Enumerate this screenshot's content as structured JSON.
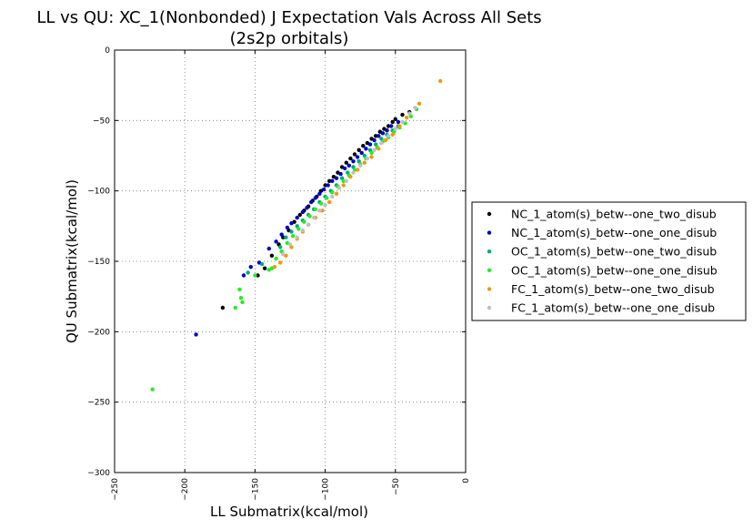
{
  "chart_data": {
    "type": "scatter",
    "title_line1": "LL vs QU: XC_1(Nonbonded) J Expectation Vals Across All Sets",
    "title_line2": "(2s2p orbitals)",
    "xlabel": "LL Submatrix(kcal/mol)",
    "ylabel": "QU Submatrix(kcal/mol)",
    "xlim": [
      -250,
      0
    ],
    "ylim": [
      -300,
      0
    ],
    "xticks": [
      -250,
      -200,
      -150,
      -100,
      -50,
      0
    ],
    "yticks": [
      0,
      -50,
      -100,
      -150,
      -200,
      -250,
      -300
    ],
    "grid": true,
    "legend_position": "right-outside",
    "series": [
      {
        "name": "NC_1_atom(s)_betw--one_two_disub",
        "color": "#000000",
        "points": [
          [
            -173,
            -183
          ],
          [
            -148,
            -160
          ],
          [
            -143,
            -155
          ],
          [
            -138,
            -146
          ],
          [
            -133,
            -138
          ],
          [
            -130,
            -133
          ],
          [
            -126,
            -128
          ],
          [
            -122,
            -122
          ],
          [
            -118,
            -117
          ],
          [
            -115,
            -114
          ],
          [
            -112,
            -111
          ],
          [
            -109,
            -107
          ],
          [
            -106,
            -104
          ],
          [
            -103,
            -100
          ],
          [
            -100,
            -96
          ],
          [
            -97,
            -93
          ],
          [
            -94,
            -90
          ],
          [
            -91,
            -87
          ],
          [
            -88,
            -83
          ],
          [
            -85,
            -80
          ],
          [
            -82,
            -77
          ],
          [
            -79,
            -74
          ],
          [
            -76,
            -71
          ],
          [
            -73,
            -68
          ],
          [
            -70,
            -66
          ],
          [
            -67,
            -63
          ],
          [
            -64,
            -61
          ],
          [
            -61,
            -58
          ],
          [
            -58,
            -56
          ],
          [
            -55,
            -54
          ],
          [
            -52,
            -51
          ],
          [
            -50,
            -49
          ],
          [
            -45,
            -46
          ],
          [
            -40,
            -44
          ]
        ]
      },
      {
        "name": "NC_1_atom(s)_betw--one_one_disub",
        "color": "#0000cc",
        "points": [
          [
            -192,
            -202
          ],
          [
            -158,
            -160
          ],
          [
            -153,
            -154
          ],
          [
            -147,
            -151
          ],
          [
            -140,
            -141
          ],
          [
            -135,
            -136
          ],
          [
            -131,
            -131
          ],
          [
            -127,
            -126
          ],
          [
            -124,
            -123
          ],
          [
            -120,
            -119
          ],
          [
            -116,
            -115
          ],
          [
            -113,
            -112
          ],
          [
            -110,
            -108
          ],
          [
            -107,
            -105
          ],
          [
            -104,
            -102
          ],
          [
            -101,
            -99
          ],
          [
            -98,
            -96
          ],
          [
            -95,
            -93
          ],
          [
            -92,
            -91
          ],
          [
            -89,
            -88
          ],
          [
            -86,
            -84
          ],
          [
            -83,
            -82
          ],
          [
            -80,
            -79
          ],
          [
            -77,
            -76
          ],
          [
            -74,
            -73
          ],
          [
            -71,
            -70
          ],
          [
            -68,
            -67
          ],
          [
            -65,
            -64
          ],
          [
            -62,
            -61
          ],
          [
            -59,
            -59
          ],
          [
            -56,
            -57
          ],
          [
            -53,
            -54
          ],
          [
            -48,
            -51
          ]
        ]
      },
      {
        "name": "OC_1_atom(s)_betw--one_two_disub",
        "color": "#00a880",
        "points": [
          [
            -155,
            -158
          ],
          [
            -145,
            -152
          ],
          [
            -132,
            -140
          ],
          [
            -128,
            -133
          ],
          [
            -124,
            -129
          ],
          [
            -120,
            -125
          ],
          [
            -116,
            -121
          ],
          [
            -112,
            -117
          ],
          [
            -108,
            -113
          ],
          [
            -104,
            -108
          ],
          [
            -100,
            -104
          ],
          [
            -96,
            -100
          ],
          [
            -92,
            -96
          ],
          [
            -88,
            -91
          ],
          [
            -84,
            -87
          ],
          [
            -80,
            -83
          ],
          [
            -76,
            -79
          ],
          [
            -72,
            -75
          ],
          [
            -68,
            -71
          ],
          [
            -64,
            -67
          ],
          [
            -60,
            -63
          ],
          [
            -56,
            -60
          ],
          [
            -52,
            -57
          ],
          [
            -48,
            -54
          ]
        ]
      },
      {
        "name": "OC_1_atom(s)_betw--one_one_disub",
        "color": "#22ee22",
        "points": [
          [
            -223,
            -241
          ],
          [
            -164,
            -183
          ],
          [
            -160,
            -176
          ],
          [
            -159,
            -179
          ],
          [
            -161,
            -170
          ],
          [
            -150,
            -160
          ],
          [
            -140,
            -156
          ],
          [
            -138,
            -155
          ],
          [
            -135,
            -148
          ],
          [
            -131,
            -143
          ],
          [
            -127,
            -137
          ],
          [
            -123,
            -132
          ],
          [
            -119,
            -127
          ],
          [
            -115,
            -122
          ],
          [
            -111,
            -118
          ],
          [
            -107,
            -113
          ],
          [
            -103,
            -109
          ],
          [
            -99,
            -105
          ],
          [
            -95,
            -101
          ],
          [
            -91,
            -97
          ],
          [
            -87,
            -93
          ],
          [
            -83,
            -89
          ],
          [
            -79,
            -85
          ],
          [
            -75,
            -81
          ],
          [
            -71,
            -77
          ],
          [
            -67,
            -73
          ],
          [
            -63,
            -69
          ],
          [
            -59,
            -65
          ],
          [
            -55,
            -62
          ],
          [
            -51,
            -58
          ],
          [
            -47,
            -55
          ],
          [
            -43,
            -52
          ],
          [
            -39,
            -47
          ],
          [
            -35,
            -42
          ]
        ]
      },
      {
        "name": "FC_1_atom(s)_betw--one_two_disub",
        "color": "#ee9911",
        "points": [
          [
            -18,
            -22
          ],
          [
            -33,
            -38
          ],
          [
            -42,
            -48
          ],
          [
            -47,
            -54
          ],
          [
            -52,
            -60
          ],
          [
            -57,
            -64
          ],
          [
            -62,
            -70
          ],
          [
            -67,
            -76
          ],
          [
            -72,
            -80
          ],
          [
            -77,
            -85
          ],
          [
            -82,
            -90
          ],
          [
            -87,
            -96
          ],
          [
            -92,
            -102
          ],
          [
            -97,
            -108
          ],
          [
            -102,
            -114
          ],
          [
            -107,
            -119
          ],
          [
            -112,
            -124
          ],
          [
            -116,
            -129
          ],
          [
            -120,
            -134
          ],
          [
            -124,
            -140
          ],
          [
            -128,
            -146
          ],
          [
            -132,
            -151
          ],
          [
            -136,
            -154
          ]
        ]
      },
      {
        "name": "FC_1_atom(s)_betw--one_one_disub",
        "color": "#c0c0c0",
        "points": [
          [
            -36,
            -41
          ],
          [
            -40,
            -45
          ],
          [
            -45,
            -51
          ],
          [
            -50,
            -56
          ],
          [
            -55,
            -61
          ],
          [
            -60,
            -66
          ],
          [
            -65,
            -71
          ],
          [
            -70,
            -77
          ],
          [
            -75,
            -82
          ],
          [
            -80,
            -87
          ],
          [
            -85,
            -93
          ],
          [
            -90,
            -98
          ],
          [
            -95,
            -104
          ],
          [
            -100,
            -110
          ],
          [
            -104,
            -114
          ],
          [
            -108,
            -119
          ],
          [
            -112,
            -124
          ],
          [
            -116,
            -128
          ],
          [
            -120,
            -133
          ],
          [
            -125,
            -138
          ],
          [
            -130,
            -145
          ]
        ]
      }
    ]
  }
}
